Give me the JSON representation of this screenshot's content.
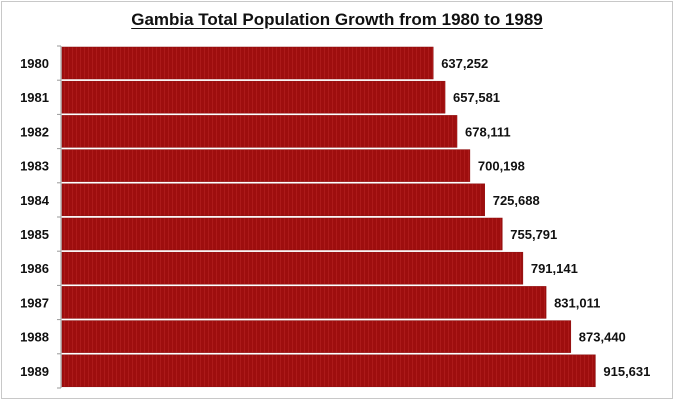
{
  "chart_data": {
    "type": "bar",
    "orientation": "horizontal",
    "title": "Gambia Total Population Growth from 1980 to 1989",
    "categories": [
      "1980",
      "1981",
      "1982",
      "1983",
      "1984",
      "1985",
      "1986",
      "1987",
      "1988",
      "1989"
    ],
    "values": [
      637252,
      657581,
      678111,
      700198,
      725688,
      755791,
      791141,
      831011,
      873440,
      915631
    ],
    "data_labels": [
      "637,252",
      "657,581",
      "678,111",
      "700,198",
      "725,688",
      "755,791",
      "791,141",
      "831,011",
      "873,440",
      "915,631"
    ],
    "xlim": [
      0,
      1030000
    ],
    "grid": false,
    "legend": "none",
    "bar_color": "#9e0e0e",
    "xlabel": "",
    "ylabel": ""
  }
}
